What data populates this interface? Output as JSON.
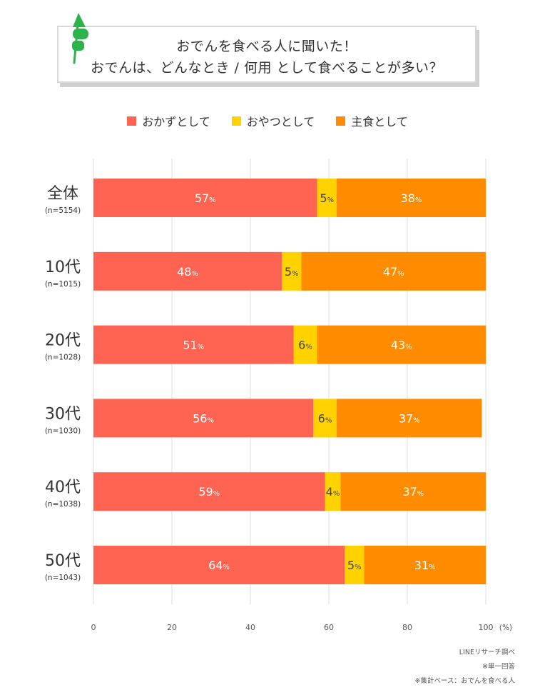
{
  "header": {
    "title_line1": "おでんを食べる人に聞いた！",
    "title_line2": "おでんは、どんなとき / 何用 として食べることが多い？"
  },
  "legend": [
    {
      "label": "おかずとして",
      "color": "#ff6452"
    },
    {
      "label": "おやつとして",
      "color": "#ffd200"
    },
    {
      "label": "主食として",
      "color": "#ff8c00"
    }
  ],
  "chart_data": {
    "type": "bar",
    "orientation": "horizontal",
    "stacked": true,
    "categories": [
      {
        "label": "全体",
        "sub": "(n=5154)"
      },
      {
        "label": "10代",
        "sub": "(n=1015)"
      },
      {
        "label": "20代",
        "sub": "(n=1028)"
      },
      {
        "label": "30代",
        "sub": "(n=1030)"
      },
      {
        "label": "40代",
        "sub": "(n=1038)"
      },
      {
        "label": "50代",
        "sub": "(n=1043)"
      }
    ],
    "series": [
      {
        "name": "おかずとして",
        "color": "#ff6452",
        "label_color": "#ffffff",
        "values": [
          57,
          48,
          51,
          56,
          59,
          64
        ]
      },
      {
        "name": "おやつとして",
        "color": "#ffd200",
        "label_color": "#444444",
        "values": [
          5,
          5,
          6,
          6,
          4,
          5
        ]
      },
      {
        "name": "主食として",
        "color": "#ff8c00",
        "label_color": "#ffffff",
        "values": [
          38,
          47,
          43,
          37,
          37,
          31
        ]
      }
    ],
    "xlim": [
      0,
      100
    ],
    "xticks": [
      0,
      20,
      40,
      60,
      80,
      100
    ],
    "x_unit": "(%)",
    "value_suffix": "%",
    "grid": true
  },
  "footnotes": [
    "LINEリサーチ調べ",
    "※単一回答",
    "※集計ベース：おでんを食べる人"
  ]
}
